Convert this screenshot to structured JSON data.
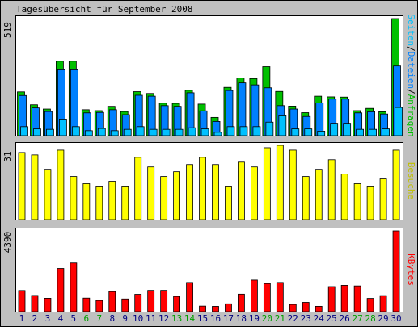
{
  "title": "Tagesübersicht für September 2008",
  "chart_data": [
    {
      "type": "bar",
      "panel": "top",
      "ymax_label": "519",
      "legend_segments": [
        {
          "text": "Seiten",
          "color": "#00c0ff"
        },
        {
          "text": "/",
          "color": "#000000"
        },
        {
          "text": "Dateien",
          "color": "#0080ff"
        },
        {
          "text": "/",
          "color": "#000000"
        },
        {
          "text": "Anfragen",
          "color": "#00c000"
        }
      ],
      "ylim": [
        0,
        519
      ],
      "series": [
        {
          "name": "Anfragen",
          "color": "#00c000",
          "values": [
            194,
            137,
            118,
            330,
            330,
            115,
            111,
            130,
            107,
            195,
            187,
            144,
            143,
            201,
            140,
            81,
            214,
            256,
            253,
            306,
            196,
            131,
            102,
            175,
            172,
            171,
            111,
            121,
            106,
            519
          ]
        },
        {
          "name": "Dateien",
          "color": "#0080ff",
          "values": [
            178,
            123,
            107,
            292,
            292,
            101,
            103,
            115,
            93,
            179,
            175,
            133,
            130,
            190,
            110,
            63,
            200,
            234,
            225,
            212,
            133,
            118,
            85,
            145,
            162,
            162,
            101,
            106,
            96,
            309
          ]
        },
        {
          "name": "Seiten",
          "color": "#00c0ff",
          "values": [
            40,
            30,
            28,
            70,
            40,
            22,
            32,
            22,
            28,
            40,
            28,
            28,
            28,
            35,
            30,
            15,
            40,
            40,
            40,
            60,
            88,
            30,
            30,
            20,
            55,
            55,
            28,
            28,
            30,
            125
          ]
        }
      ]
    },
    {
      "type": "bar",
      "panel": "middle",
      "ymax_label": "31",
      "legend_segments": [
        {
          "text": "Besuche",
          "color": "#c0c000"
        }
      ],
      "ylim": [
        0,
        31
      ],
      "series": [
        {
          "name": "Besuche",
          "color": "#ffff00",
          "values": [
            28,
            27,
            21,
            29,
            18,
            15,
            14,
            16,
            14,
            26,
            22,
            18,
            20,
            23,
            26,
            23,
            14,
            24,
            22,
            30,
            31,
            29,
            18,
            21,
            25,
            19,
            15,
            14,
            17,
            29
          ]
        }
      ]
    },
    {
      "type": "bar",
      "panel": "bottom",
      "ymax_label": "4390",
      "legend_segments": [
        {
          "text": "KBytes",
          "color": "#ff0000"
        }
      ],
      "ylim": [
        0,
        4390
      ],
      "series": [
        {
          "name": "KBytes",
          "color": "#ff0000",
          "values": [
            1148,
            881,
            728,
            2348,
            2646,
            737,
            607,
            1088,
            691,
            943,
            1156,
            1157,
            826,
            1585,
            301,
            287,
            426,
            951,
            1716,
            1525,
            1586,
            390,
            505,
            290,
            1361,
            1430,
            1398,
            721,
            872,
            4390
          ]
        }
      ]
    }
  ],
  "x_labels": [
    "1",
    "2",
    "3",
    "4",
    "5",
    "6",
    "7",
    "8",
    "9",
    "10",
    "11",
    "12",
    "13",
    "14",
    "15",
    "16",
    "17",
    "18",
    "19",
    "20",
    "21",
    "22",
    "23",
    "24",
    "25",
    "26",
    "27",
    "28",
    "29",
    "30"
  ],
  "weekend_days": [
    6,
    7,
    13,
    14,
    20,
    21,
    27,
    28
  ],
  "colors": {
    "weekday_label": "#000080",
    "weekend_label": "#00a000",
    "panel_background": "#ffffff",
    "outer_background": "#c0c0c0"
  }
}
